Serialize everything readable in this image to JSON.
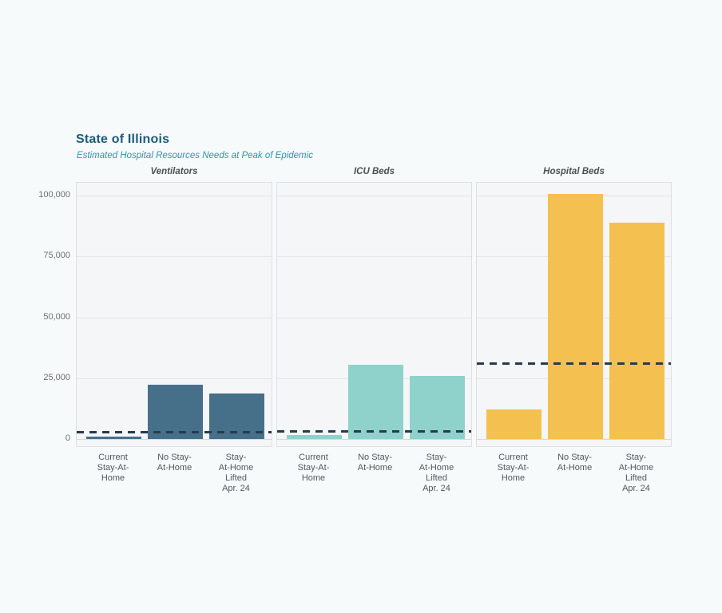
{
  "page": {
    "background_color": "#F6FAFB"
  },
  "chart_data": {
    "type": "bar",
    "title": "State of Illinois",
    "subtitle": "Estimated Hospital Resources Needs at Peak of Epidemic",
    "categories": [
      "Current Stay-At-Home",
      "No Stay-At-Home",
      "Stay-At-Home Lifted Apr. 24"
    ],
    "category_label_lines": [
      "Current\nStay-At-\nHome",
      "No Stay-\nAt-Home",
      "Stay-\nAt-Home\nLifted\nApr. 24"
    ],
    "y_axis": {
      "ticks": [
        0,
        25000,
        50000,
        75000,
        100000
      ],
      "tick_labels": [
        "0",
        "25,000",
        "50,000",
        "75,000",
        "100,000"
      ],
      "range": [
        0,
        105000
      ],
      "grid": true
    },
    "legend_position": "none",
    "capacity_line_style": "dashed",
    "capacity_line_color": "#263B4E",
    "panels": [
      {
        "title": "Ventilators",
        "bar_color": "#46708A",
        "values": [
          1000,
          22300,
          18800
        ],
        "capacity_line_value": 3000
      },
      {
        "title": "ICU Beds",
        "bar_color": "#8FD2CB",
        "values": [
          1600,
          30500,
          26000
        ],
        "capacity_line_value": 3200
      },
      {
        "title": "Hospital Beds",
        "bar_color": "#F4C04F",
        "values": [
          12000,
          100500,
          89000
        ],
        "capacity_line_value": 31000
      }
    ]
  }
}
